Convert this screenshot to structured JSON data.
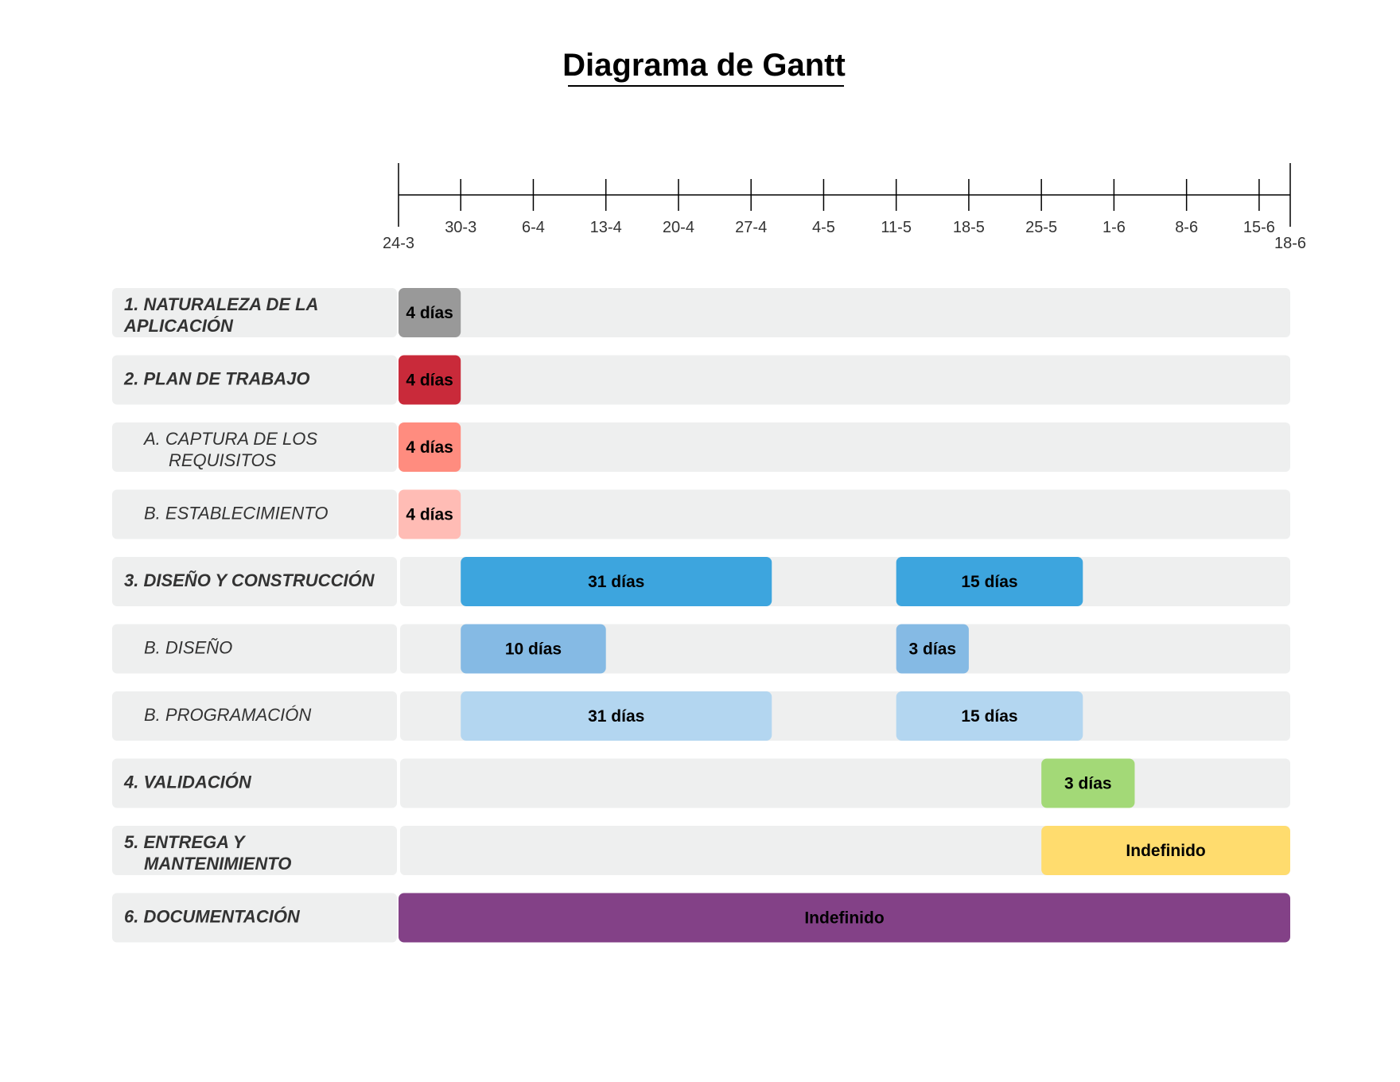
{
  "title": "Diagrama de Gantt",
  "chart_data": {
    "type": "gantt",
    "title": "Diagrama de Gantt",
    "x_axis": {
      "start": "24-3",
      "end": "18-6",
      "ticks": [
        "24-3",
        "30-3",
        "6-4",
        "13-4",
        "20-4",
        "27-4",
        "4-5",
        "11-5",
        "18-5",
        "25-5",
        "1-6",
        "8-6",
        "15-6",
        "18-6"
      ]
    },
    "rows": [
      {
        "label": "1. NATURALEZA DE LA APLICACIÓN",
        "lines": [
          "1. NATURALEZA DE LA",
          "APLICACIÓN"
        ],
        "level": 0,
        "bars": [
          {
            "start": "24-3",
            "end": "30-3",
            "label": "4 días",
            "color": "#999999"
          }
        ]
      },
      {
        "label": "2. PLAN DE TRABAJO",
        "lines": [
          "2. PLAN DE TRABAJO"
        ],
        "level": 0,
        "bars": [
          {
            "start": "24-3",
            "end": "30-3",
            "label": "4 días",
            "color": "#C92A3A"
          }
        ]
      },
      {
        "label": "A. CAPTURA DE LOS REQUISITOS",
        "lines": [
          "A. CAPTURA DE LOS",
          "REQUISITOS"
        ],
        "level": 1,
        "bars": [
          {
            "start": "24-3",
            "end": "30-3",
            "label": "4 días",
            "color": "#FF8C7F"
          }
        ]
      },
      {
        "label": "B. ESTABLECIMIENTO",
        "lines": [
          "B. ESTABLECIMIENTO"
        ],
        "level": 1,
        "bars": [
          {
            "start": "24-3",
            "end": "30-3",
            "label": "4 días",
            "color": "#FFBCB5"
          }
        ]
      },
      {
        "label": "3. DISEÑO Y CONSTRUCCIÓN",
        "lines": [
          "3. DISEÑO Y CONSTRUCCIÓN"
        ],
        "level": 0,
        "bars": [
          {
            "start": "30-3",
            "end": "29-4",
            "label": "31 días",
            "color": "#3DA5DE"
          },
          {
            "start": "11-5",
            "end": "29-5",
            "label": "15 días",
            "color": "#3DA5DE"
          }
        ]
      },
      {
        "label": "B. DISEÑO",
        "lines": [
          "B. DISEÑO"
        ],
        "level": 1,
        "bars": [
          {
            "start": "30-3",
            "end": "13-4",
            "label": "10 días",
            "color": "#85BAE4"
          },
          {
            "start": "11-5",
            "end": "18-5",
            "label": "3 días",
            "color": "#85BAE4"
          }
        ]
      },
      {
        "label": "B. PROGRAMACIÓN",
        "lines": [
          "B. PROGRAMACIÓN"
        ],
        "level": 1,
        "bars": [
          {
            "start": "30-3",
            "end": "29-4",
            "label": "31 días",
            "color": "#B3D6F0"
          },
          {
            "start": "11-5",
            "end": "29-5",
            "label": "15 días",
            "color": "#B3D6F0"
          }
        ]
      },
      {
        "label": "4. VALIDACIÓN",
        "lines": [
          "4. VALIDACIÓN"
        ],
        "level": 0,
        "bars": [
          {
            "start": "25-5",
            "end": "3-6",
            "label": "3 días",
            "color": "#A3D977"
          }
        ]
      },
      {
        "label": "5. ENTREGA Y MANTENIMIENTO",
        "lines": [
          "5. ENTREGA Y",
          "MANTENIMIENTO"
        ],
        "level": 0,
        "bars": [
          {
            "start": "25-5",
            "end": "18-6",
            "label": "Indefinido",
            "color": "#FFDC6E"
          }
        ]
      },
      {
        "label": "6. DOCUMENTACIÓN",
        "lines": [
          "6. DOCUMENTACIÓN"
        ],
        "level": 0,
        "bars": [
          {
            "start": "24-3",
            "end": "18-6",
            "label": "Indefinido",
            "color": "#834187"
          }
        ]
      }
    ]
  }
}
